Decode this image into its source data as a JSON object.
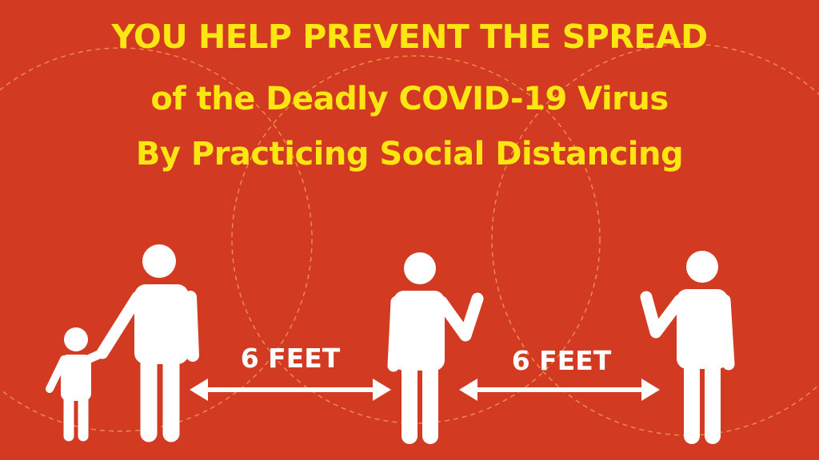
{
  "headline": {
    "line1": "YOU HELP PREVENT THE SPREAD",
    "line2": "of the Deadly COVID-19 Virus",
    "line3": "By Practicing Social Distancing"
  },
  "distances": {
    "left_label": "6 FEET",
    "right_label": "6 FEET"
  },
  "colors": {
    "background": "#d23a21",
    "headline": "#fde612",
    "figures": "#ffffff",
    "dashed_circles": "#f0a050"
  },
  "icons": {
    "figures": [
      "adult-person-icon",
      "child-person-icon",
      "waving-person-icon",
      "waving-person-icon"
    ],
    "arrows": [
      "double-arrow-icon",
      "double-arrow-icon"
    ]
  }
}
